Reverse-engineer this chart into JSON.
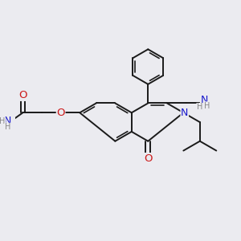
{
  "bg_color": "#ebebf0",
  "bond_color": "#1a1a1a",
  "bond_width": 1.4,
  "atom_colors": {
    "N": "#1818cc",
    "O": "#cc1818",
    "H": "#888888"
  },
  "font_size": 7.5
}
